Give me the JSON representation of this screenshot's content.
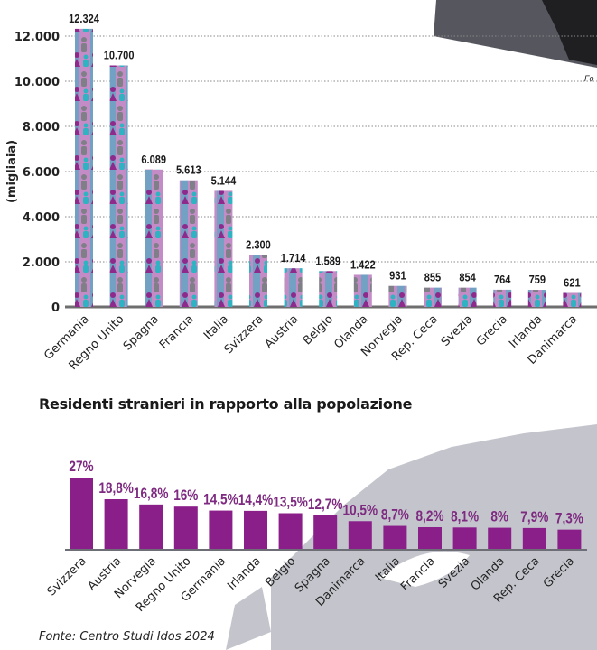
{
  "photo_caption_fragment": "Fo",
  "chart_data": [
    {
      "type": "bar",
      "title": "",
      "xlabel": "",
      "ylabel": "(migliaia)",
      "ylim": [
        0,
        12000
      ],
      "yticks": [
        0,
        2000,
        4000,
        6000,
        8000,
        10000,
        12000
      ],
      "ytick_labels": [
        "0",
        "2.000",
        "4.000",
        "6.000",
        "8.000",
        "10.000",
        "12.000"
      ],
      "grid": true,
      "categories": [
        "Germania",
        "Regno Unito",
        "Spagna",
        "Francia",
        "Italia",
        "Svizzera",
        "Austria",
        "Belgio",
        "Olanda",
        "Norvegia",
        "Rep. Ceca",
        "Svezia",
        "Grecia",
        "Irlanda",
        "Danimarca"
      ],
      "values": [
        12324,
        10700,
        6089,
        5613,
        5144,
        2300,
        1714,
        1589,
        1422,
        931,
        855,
        854,
        764,
        759,
        621
      ],
      "value_labels": [
        "12.324",
        "10.700",
        "6.089",
        "5.613",
        "5.144",
        "2.300",
        "1.714",
        "1.589",
        "1.422",
        "931",
        "855",
        "854",
        "764",
        "759",
        "621"
      ],
      "bar_palette": [
        "#8e2a8c",
        "#2fb3c2",
        "#7f7f87",
        "#c48cc6"
      ]
    },
    {
      "type": "bar",
      "title": "Residenti stranieri in rapporto alla popolazione",
      "xlabel": "",
      "ylabel": "",
      "ylim": [
        0,
        27
      ],
      "grid": false,
      "categories": [
        "Svizzera",
        "Austria",
        "Norvegia",
        "Regno Unito",
        "Germania",
        "Irlanda",
        "Belgio",
        "Spagna",
        "Danimarca",
        "Italia",
        "Francia",
        "Svezia",
        "Olanda",
        "Rep. Ceca",
        "Grecia"
      ],
      "values": [
        27,
        18.8,
        16.8,
        16,
        14.5,
        14.4,
        13.5,
        12.7,
        10.5,
        8.7,
        8.2,
        8.1,
        8,
        7.9,
        7.3
      ],
      "value_labels": [
        "27%",
        "18,8%",
        "16,8%",
        "16%",
        "14,5%",
        "14,4%",
        "13,5%",
        "12,7%",
        "10,5%",
        "8,7%",
        "8,2%",
        "8,1%",
        "8%",
        "7,9%",
        "7,3%"
      ],
      "bar_color": "#8b1f8a",
      "label_color": "#7d2a80"
    }
  ],
  "source": "Fonte: Centro Studi Idos 2024"
}
